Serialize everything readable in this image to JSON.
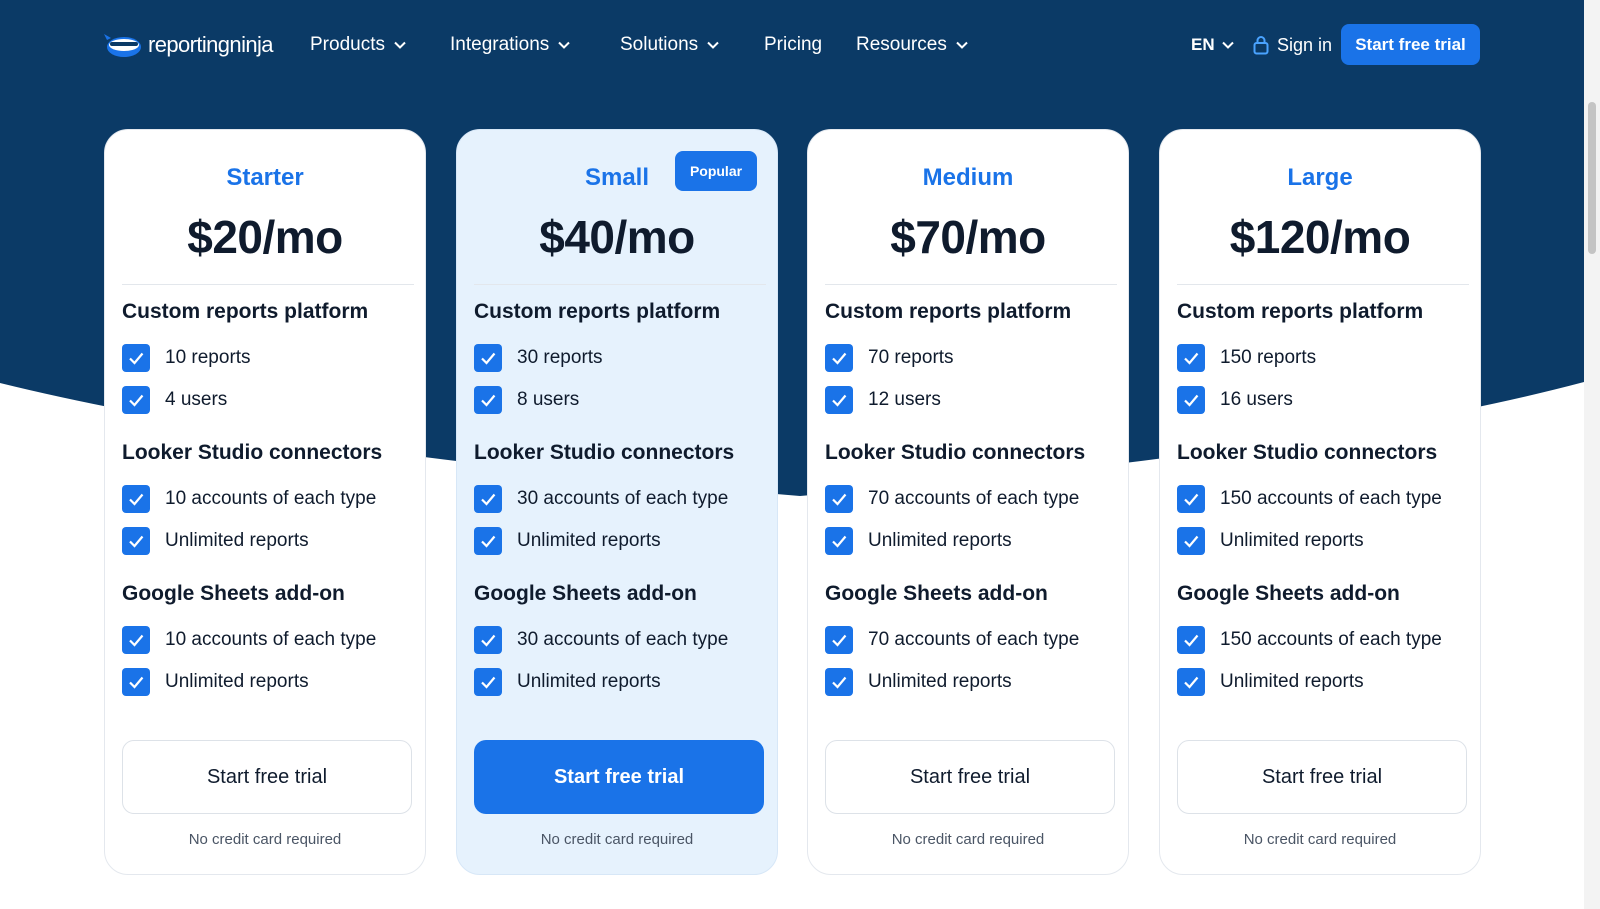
{
  "brand": {
    "name": "reportingninja"
  },
  "nav": {
    "products": "Products",
    "integrations": "Integrations",
    "solutions": "Solutions",
    "pricing": "Pricing",
    "resources": "Resources"
  },
  "header": {
    "language": "EN",
    "sign_in": "Sign in",
    "cta": "Start free trial"
  },
  "colors": {
    "navy": "#0b3a66",
    "accent": "#1a73e8",
    "popular_bg": "#e6f2fd"
  },
  "plans": [
    {
      "name": "Starter",
      "price": "$20/mo",
      "popular": false,
      "sections": [
        {
          "title": "Custom reports platform",
          "features": [
            "10 reports",
            "4 users"
          ]
        },
        {
          "title": "Looker Studio connectors",
          "features": [
            "10 accounts of each type",
            "Unlimited reports"
          ]
        },
        {
          "title": "Google Sheets add-on",
          "features": [
            "10 accounts of each type",
            "Unlimited reports"
          ]
        }
      ],
      "cta": "Start free trial",
      "note": "No credit card required"
    },
    {
      "name": "Small",
      "price": "$40/mo",
      "popular": true,
      "badge": "Popular",
      "sections": [
        {
          "title": "Custom reports platform",
          "features": [
            "30 reports",
            "8 users"
          ]
        },
        {
          "title": "Looker Studio connectors",
          "features": [
            "30 accounts of each type",
            "Unlimited reports"
          ]
        },
        {
          "title": "Google Sheets add-on",
          "features": [
            "30 accounts of each type",
            "Unlimited reports"
          ]
        }
      ],
      "cta": "Start free trial",
      "note": "No credit card required"
    },
    {
      "name": "Medium",
      "price": "$70/mo",
      "popular": false,
      "sections": [
        {
          "title": "Custom reports platform",
          "features": [
            "70 reports",
            "12 users"
          ]
        },
        {
          "title": "Looker Studio connectors",
          "features": [
            "70 accounts of each type",
            "Unlimited reports"
          ]
        },
        {
          "title": "Google Sheets add-on",
          "features": [
            "70 accounts of each type",
            "Unlimited reports"
          ]
        }
      ],
      "cta": "Start free trial",
      "note": "No credit card required"
    },
    {
      "name": "Large",
      "price": "$120/mo",
      "popular": false,
      "sections": [
        {
          "title": "Custom reports platform",
          "features": [
            "150 reports",
            "16 users"
          ]
        },
        {
          "title": "Looker Studio connectors",
          "features": [
            "150 accounts of each type",
            "Unlimited reports"
          ]
        },
        {
          "title": "Google Sheets add-on",
          "features": [
            "150 accounts of each type",
            "Unlimited reports"
          ]
        }
      ],
      "cta": "Start free trial",
      "note": "No credit card required"
    }
  ]
}
